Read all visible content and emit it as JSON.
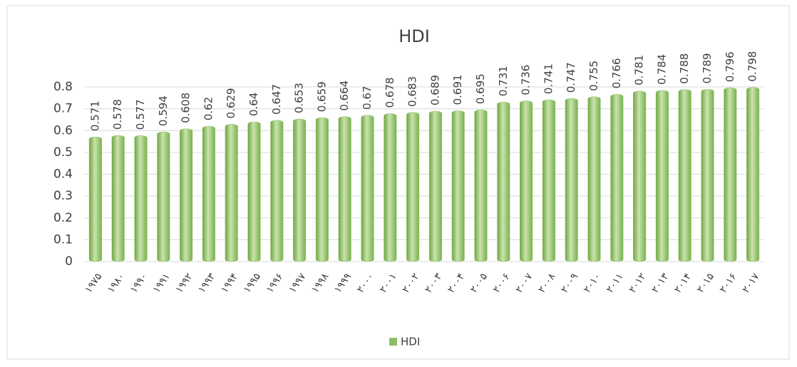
{
  "chart_data": {
    "type": "bar",
    "title": "HDI",
    "categories": [
      "۱۹۷۵",
      "۱۹۸۰",
      "۱۹۹۰",
      "۱۹۹۱",
      "۱۹۹۲",
      "۱۹۹۳",
      "۱۹۹۴",
      "۱۹۹۵",
      "۱۹۹۶",
      "۱۹۹۷",
      "۱۹۹۸",
      "۱۹۹۹",
      "۲۰۰۰",
      "۲۰۰۱",
      "۲۰۰۲",
      "۲۰۰۳",
      "۲۰۰۴",
      "۲۰۰۵",
      "۲۰۰۶",
      "۲۰۰۷",
      "۲۰۰۸",
      "۲۰۰۹",
      "۲۰۱۰",
      "۲۰۱۱",
      "۲۰۱۲",
      "۲۰۱۳",
      "۲۰۱۴",
      "۲۰۱۵",
      "۲۰۱۶",
      "۲۰۱۷"
    ],
    "series": [
      {
        "name": "HDI",
        "color": "#8cc063",
        "values": [
          0.571,
          0.578,
          0.577,
          0.594,
          0.608,
          0.62,
          0.629,
          0.64,
          0.647,
          0.653,
          0.659,
          0.664,
          0.67,
          0.678,
          0.683,
          0.689,
          0.691,
          0.695,
          0.731,
          0.736,
          0.741,
          0.747,
          0.755,
          0.766,
          0.781,
          0.784,
          0.788,
          0.789,
          0.796,
          0.798
        ]
      }
    ],
    "ylim": [
      0,
      0.8
    ],
    "yticks": [
      0,
      0.1,
      0.2,
      0.3,
      0.4,
      0.5,
      0.6,
      0.7,
      0.8
    ],
    "grid": true,
    "legend": "bottom"
  }
}
